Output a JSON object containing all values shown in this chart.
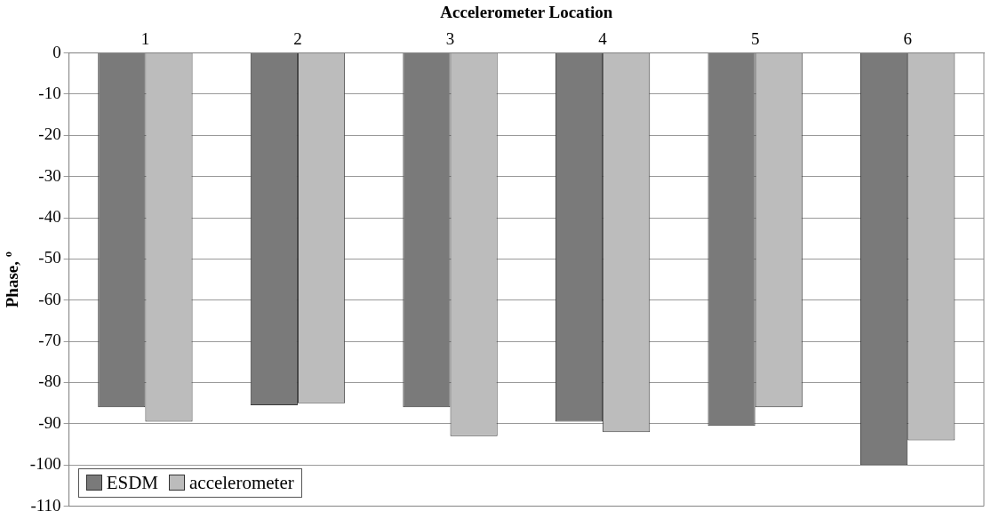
{
  "chart_data": {
    "type": "bar",
    "xlabel": "Accelerometer Location",
    "ylabel": "Phase, º",
    "categories": [
      "1",
      "2",
      "3",
      "4",
      "5",
      "6"
    ],
    "series": [
      {
        "name": "ESDM",
        "color": "#7a7a7a",
        "values": [
          -86,
          -85.5,
          -86,
          -89.5,
          -90.5,
          -100
        ]
      },
      {
        "name": "accelerometer",
        "color": "#bcbcbc",
        "values": [
          -89.5,
          -85,
          -93,
          -92,
          -86,
          -94
        ]
      }
    ],
    "ylim": [
      -110,
      0
    ],
    "yticks": [
      0,
      -10,
      -20,
      -30,
      -40,
      -50,
      -60,
      -70,
      -80,
      -90,
      -100,
      -110
    ],
    "grid": "y",
    "legend": "bottom left"
  }
}
